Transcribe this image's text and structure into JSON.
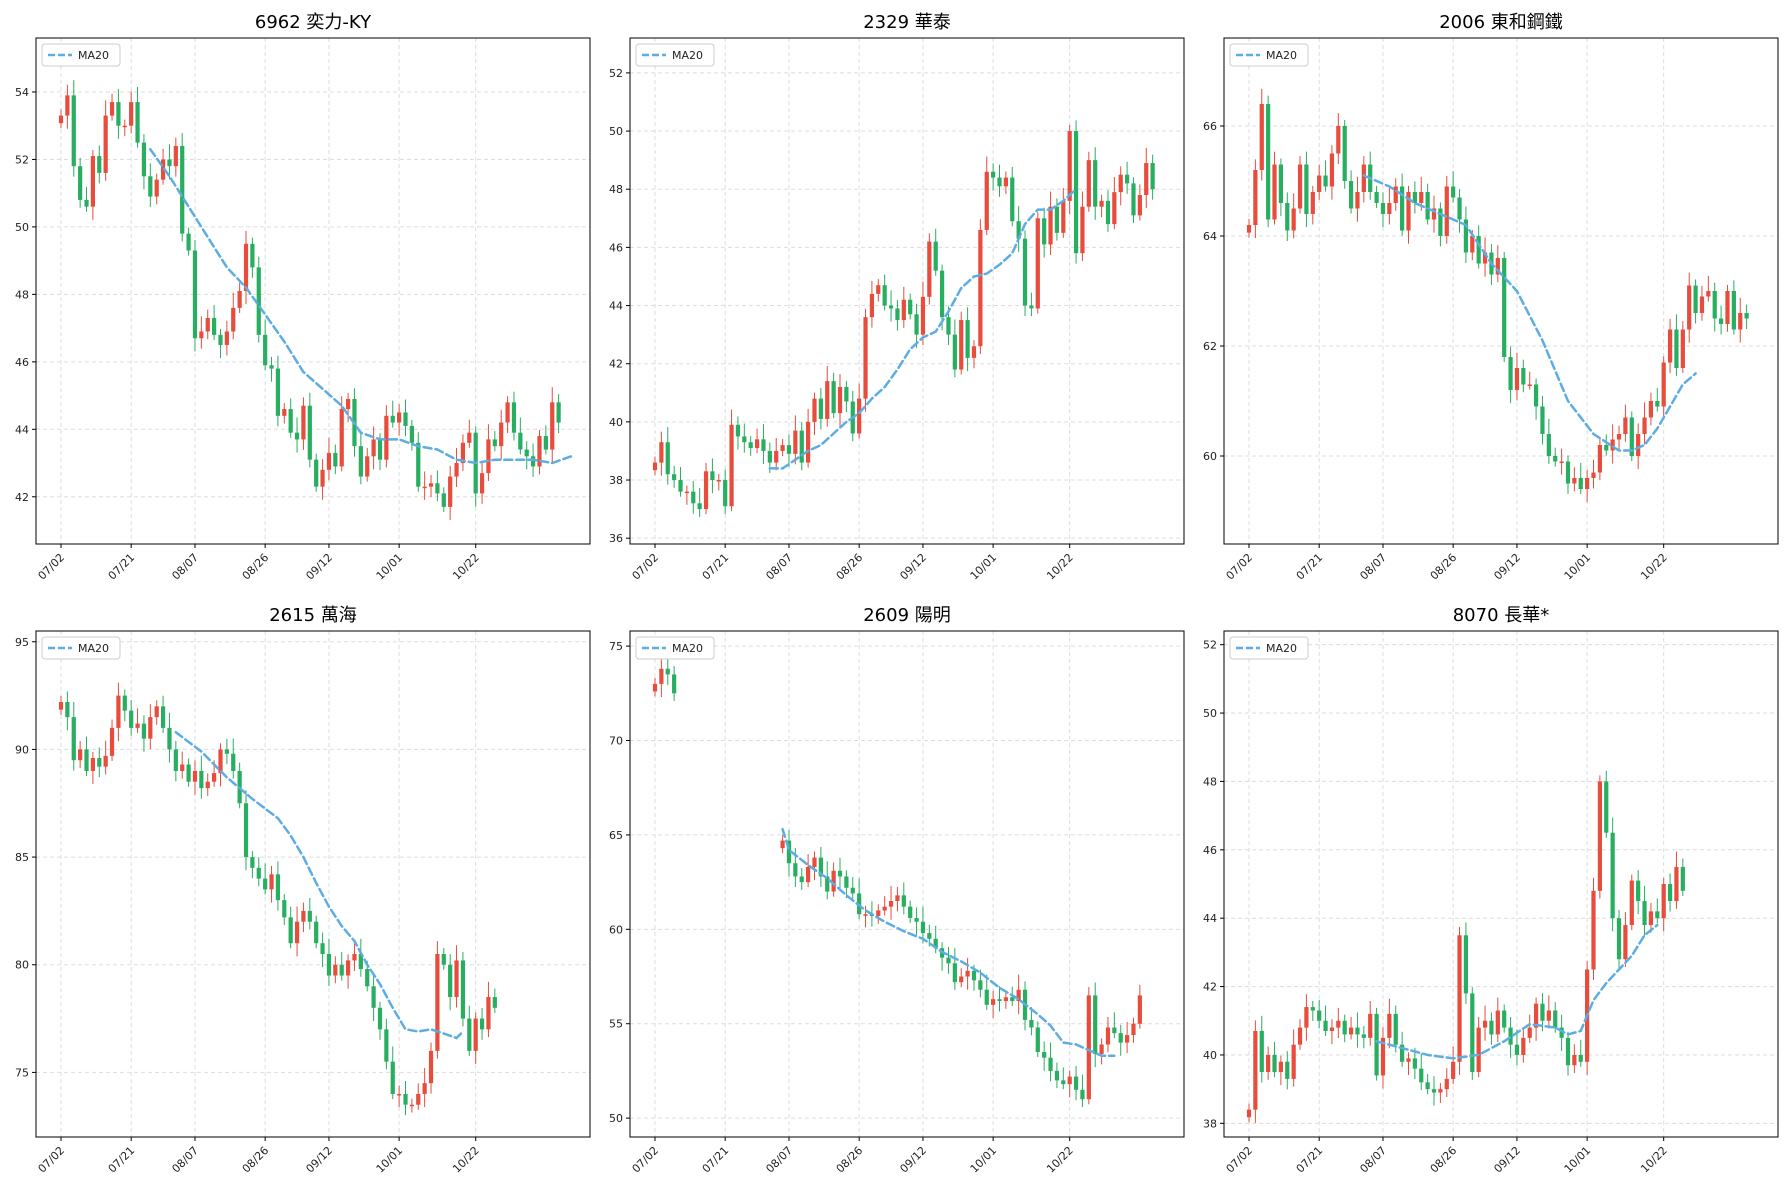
{
  "ma_label": "MA20",
  "colors": {
    "up": "#e74c3c",
    "down": "#27ae60",
    "ma": "#5dade2",
    "grid": "#dddddd",
    "axis": "#000000"
  },
  "x_ticks": [
    "07/02",
    "07/21",
    "08/07",
    "08/26",
    "09/12",
    "10/01",
    "10/22"
  ],
  "chart_data": [
    {
      "type": "candlestick",
      "title": "6962 奕力-KY",
      "ylim": [
        40.6,
        55.6
      ],
      "yticks": [
        42,
        44,
        46,
        48,
        50,
        52,
        54
      ],
      "closes": [
        53.3,
        53.9,
        51.8,
        50.8,
        50.6,
        52.1,
        51.6,
        53.3,
        53.7,
        53.0,
        53.0,
        53.7,
        52.5,
        51.5,
        50.9,
        51.4,
        52.0,
        51.8,
        52.4,
        49.8,
        49.3,
        46.7,
        46.9,
        47.3,
        46.8,
        46.5,
        46.9,
        47.6,
        48.1,
        49.5,
        48.8,
        46.8,
        45.9,
        45.8,
        44.4,
        44.6,
        43.9,
        43.7,
        44.7,
        43.1,
        42.3,
        42.8,
        43.3,
        42.9,
        44.6,
        44.9,
        43.5,
        42.6,
        43.2,
        43.7,
        43.1,
        44.4,
        44.2,
        44.5,
        44.1,
        43.6,
        42.3,
        42.3,
        42.4,
        42.1,
        41.7,
        42.6,
        43.0,
        43.6,
        43.9,
        42.1,
        42.7,
        43.7,
        43.5,
        44.2,
        44.8,
        43.9,
        43.4,
        43.2,
        42.9,
        43.8,
        43.4,
        44.8,
        44.2
      ],
      "ma20": [
        [
          14,
          52.3
        ],
        [
          17,
          51.5
        ],
        [
          20,
          50.6
        ],
        [
          23,
          49.7
        ],
        [
          26,
          48.8
        ],
        [
          29,
          48.2
        ],
        [
          32,
          47.4
        ],
        [
          35,
          46.6
        ],
        [
          38,
          45.7
        ],
        [
          41,
          45.2
        ],
        [
          44,
          44.7
        ],
        [
          47,
          43.9
        ],
        [
          50,
          43.7
        ],
        [
          53,
          43.7
        ],
        [
          56,
          43.5
        ],
        [
          59,
          43.4
        ],
        [
          62,
          43.1
        ],
        [
          65,
          43.0
        ],
        [
          68,
          43.1
        ],
        [
          71,
          43.1
        ],
        [
          74,
          43.1
        ],
        [
          77,
          43.0
        ],
        [
          80,
          43.2
        ]
      ]
    },
    {
      "type": "candlestick",
      "title": "2329 華泰",
      "ylim": [
        35.8,
        53.2
      ],
      "yticks": [
        36,
        38,
        40,
        42,
        44,
        46,
        48,
        50,
        52
      ],
      "closes": [
        38.6,
        39.3,
        38.2,
        38.0,
        37.6,
        37.6,
        37.2,
        37.0,
        38.3,
        38.0,
        38.0,
        37.1,
        39.9,
        39.5,
        39.3,
        39.1,
        39.4,
        39.0,
        38.6,
        39.0,
        39.2,
        38.9,
        39.7,
        38.6,
        40.0,
        40.8,
        40.1,
        41.4,
        40.3,
        41.2,
        40.7,
        39.6,
        40.8,
        43.6,
        44.4,
        44.7,
        44.0,
        43.9,
        43.5,
        44.2,
        43.7,
        43.0,
        44.3,
        46.2,
        45.2,
        43.6,
        43.0,
        41.8,
        43.5,
        42.2,
        42.6,
        46.6,
        48.6,
        48.4,
        48.1,
        48.4,
        46.9,
        46.3,
        44.0,
        43.9,
        47.0,
        46.1,
        47.4,
        46.5,
        47.6,
        50.0,
        45.8,
        47.4,
        49.0,
        47.4,
        47.6,
        46.8,
        47.9,
        48.5,
        48.2,
        47.1,
        47.8,
        48.9,
        48.0
      ],
      "ma20": [
        [
          18,
          38.4
        ],
        [
          20,
          38.4
        ],
        [
          22,
          38.7
        ],
        [
          24,
          39.0
        ],
        [
          26,
          39.2
        ],
        [
          28,
          39.6
        ],
        [
          30,
          40.0
        ],
        [
          32,
          40.3
        ],
        [
          34,
          40.8
        ],
        [
          36,
          41.2
        ],
        [
          38,
          41.8
        ],
        [
          40,
          42.5
        ],
        [
          42,
          42.9
        ],
        [
          44,
          43.1
        ],
        [
          46,
          43.8
        ],
        [
          48,
          44.6
        ],
        [
          50,
          45.0
        ],
        [
          52,
          45.1
        ],
        [
          54,
          45.4
        ],
        [
          56,
          45.8
        ],
        [
          58,
          46.8
        ],
        [
          60,
          47.3
        ],
        [
          62,
          47.3
        ],
        [
          64,
          47.6
        ],
        [
          66,
          48.0
        ]
      ]
    },
    {
      "type": "candlestick",
      "title": "2006 東和鋼鐵",
      "ylim": [
        58.4,
        67.6
      ],
      "yticks": [
        60,
        62,
        64,
        66
      ],
      "closes": [
        64.2,
        65.2,
        66.4,
        64.3,
        65.3,
        64.6,
        64.1,
        64.5,
        65.3,
        64.4,
        64.8,
        65.1,
        64.9,
        65.5,
        66.0,
        65.0,
        64.5,
        64.8,
        65.3,
        64.8,
        64.6,
        64.4,
        64.6,
        64.9,
        64.1,
        64.8,
        64.6,
        64.8,
        64.3,
        64.5,
        64.0,
        64.9,
        64.7,
        64.3,
        63.7,
        64.0,
        63.5,
        63.7,
        63.3,
        63.6,
        61.8,
        61.2,
        61.6,
        61.3,
        61.3,
        60.9,
        60.4,
        60.0,
        59.9,
        59.9,
        59.5,
        59.6,
        59.4,
        59.6,
        59.7,
        60.2,
        60.1,
        60.3,
        60.4,
        60.7,
        60.0,
        60.4,
        60.7,
        61.0,
        60.9,
        61.7,
        62.3,
        61.6,
        62.3,
        63.1,
        62.6,
        62.9,
        63.0,
        62.5,
        62.4,
        63.0,
        62.3,
        62.6,
        62.5
      ],
      "ma20": [
        [
          18,
          65.1
        ],
        [
          22,
          64.9
        ],
        [
          26,
          64.6
        ],
        [
          30,
          64.4
        ],
        [
          34,
          64.2
        ],
        [
          38,
          63.5
        ],
        [
          42,
          63.0
        ],
        [
          46,
          62.1
        ],
        [
          50,
          61.0
        ],
        [
          54,
          60.4
        ],
        [
          58,
          60.1
        ],
        [
          60,
          60.1
        ],
        [
          62,
          60.2
        ],
        [
          64,
          60.5
        ],
        [
          66,
          60.9
        ],
        [
          68,
          61.3
        ],
        [
          70,
          61.5
        ]
      ]
    },
    {
      "type": "candlestick",
      "title": "2615 萬海",
      "ylim": [
        72.0,
        95.5
      ],
      "yticks": [
        75,
        80,
        85,
        90,
        95
      ],
      "closes": [
        92.2,
        91.5,
        89.5,
        90.0,
        89.0,
        89.6,
        89.2,
        89.7,
        91.0,
        92.5,
        91.8,
        91.0,
        91.2,
        90.5,
        91.5,
        92.0,
        91.0,
        90.0,
        89.0,
        89.3,
        88.5,
        89.0,
        88.2,
        88.5,
        88.9,
        90.0,
        89.8,
        89.0,
        87.5,
        85.0,
        84.5,
        84.0,
        83.5,
        84.2,
        83.0,
        82.2,
        81.0,
        82.0,
        82.5,
        82.0,
        81.0,
        80.5,
        79.5,
        80.0,
        79.5,
        80.2,
        80.5,
        79.8,
        79.0,
        78.0,
        77.0,
        75.5,
        74.0,
        74.0,
        73.5,
        73.5,
        74.0,
        74.5,
        76.0,
        80.5,
        80.0,
        78.5,
        80.2,
        77.5,
        76.0,
        77.5,
        77.0,
        78.5,
        78.0
      ],
      "ma20": [
        [
          18,
          90.8
        ],
        [
          22,
          89.9
        ],
        [
          26,
          88.7
        ],
        [
          30,
          87.7
        ],
        [
          34,
          86.8
        ],
        [
          36,
          86.0
        ],
        [
          38,
          85.0
        ],
        [
          40,
          83.8
        ],
        [
          42,
          82.7
        ],
        [
          44,
          81.8
        ],
        [
          46,
          81.1
        ],
        [
          48,
          80.0
        ],
        [
          50,
          79.1
        ],
        [
          52,
          78.0
        ],
        [
          54,
          77.0
        ],
        [
          56,
          76.9
        ],
        [
          58,
          77.0
        ],
        [
          60,
          76.8
        ],
        [
          62,
          76.6
        ],
        [
          63,
          76.9
        ]
      ]
    },
    {
      "type": "candlestick",
      "title": "2609 陽明",
      "ylim": [
        49.0,
        75.8
      ],
      "yticks": [
        50,
        55,
        60,
        65,
        70,
        75
      ],
      "closes": [
        73.0,
        73.8,
        73.5,
        72.5,
        null,
        null,
        null,
        null,
        null,
        null,
        null,
        null,
        null,
        null,
        null,
        null,
        null,
        null,
        null,
        null,
        64.7,
        63.5,
        62.8,
        62.5,
        63.3,
        63.8,
        62.8,
        62.0,
        63.1,
        62.8,
        62.2,
        61.9,
        60.8,
        60.8,
        60.7,
        61.0,
        61.2,
        61.5,
        61.8,
        61.2,
        60.6,
        60.4,
        59.8,
        59.5,
        59.0,
        58.5,
        58.2,
        57.2,
        57.5,
        57.8,
        57.3,
        56.8,
        56.0,
        56.3,
        56.2,
        56.4,
        56.2,
        56.8,
        55.2,
        54.8,
        53.5,
        53.2,
        52.5,
        52.0,
        51.8,
        52.2,
        51.5,
        51.0,
        56.5,
        53.4,
        53.9,
        54.8,
        54.5,
        54.0,
        54.4,
        55.0,
        56.5
      ],
      "ma20": [
        [
          20,
          65.3
        ],
        [
          21,
          64.2
        ],
        [
          24,
          63.4
        ],
        [
          27,
          62.7
        ],
        [
          30,
          61.8
        ],
        [
          33,
          61.0
        ],
        [
          36,
          60.4
        ],
        [
          39,
          59.9
        ],
        [
          42,
          59.5
        ],
        [
          45,
          58.8
        ],
        [
          48,
          58.3
        ],
        [
          51,
          57.7
        ],
        [
          54,
          56.9
        ],
        [
          57,
          56.3
        ],
        [
          60,
          55.5
        ],
        [
          62,
          54.9
        ],
        [
          64,
          54.0
        ],
        [
          66,
          53.9
        ],
        [
          68,
          53.6
        ],
        [
          70,
          53.3
        ],
        [
          72,
          53.3
        ]
      ]
    },
    {
      "type": "candlestick",
      "title": "8070 長華*",
      "ylim": [
        37.6,
        52.4
      ],
      "yticks": [
        38,
        40,
        42,
        44,
        46,
        48,
        50,
        52
      ],
      "closes": [
        38.4,
        40.7,
        39.5,
        40.0,
        39.5,
        39.8,
        39.3,
        40.3,
        40.8,
        41.4,
        41.3,
        41.0,
        40.7,
        40.8,
        41.0,
        40.6,
        40.8,
        40.6,
        40.5,
        41.2,
        39.4,
        40.5,
        41.2,
        40.3,
        39.8,
        39.9,
        39.6,
        39.2,
        39.0,
        38.9,
        39.0,
        39.3,
        39.8,
        43.5,
        41.8,
        39.5,
        40.8,
        41.0,
        40.6,
        41.3,
        40.8,
        40.3,
        40.0,
        40.5,
        40.8,
        41.5,
        41.0,
        41.3,
        40.8,
        40.5,
        39.7,
        40.0,
        39.8,
        42.5,
        44.8,
        48.0,
        46.5,
        44.0,
        42.8,
        43.8,
        45.1,
        44.5,
        43.8,
        44.2,
        44.0,
        45.0,
        44.5,
        45.5,
        44.8
      ],
      "ma20": [
        [
          20,
          40.4
        ],
        [
          24,
          40.2
        ],
        [
          28,
          40.0
        ],
        [
          32,
          39.9
        ],
        [
          36,
          40.0
        ],
        [
          40,
          40.4
        ],
        [
          44,
          40.9
        ],
        [
          48,
          40.8
        ],
        [
          50,
          40.6
        ],
        [
          52,
          40.7
        ],
        [
          54,
          41.6
        ],
        [
          56,
          42.1
        ],
        [
          58,
          42.5
        ],
        [
          60,
          42.9
        ],
        [
          62,
          43.5
        ],
        [
          64,
          43.8
        ]
      ]
    }
  ]
}
